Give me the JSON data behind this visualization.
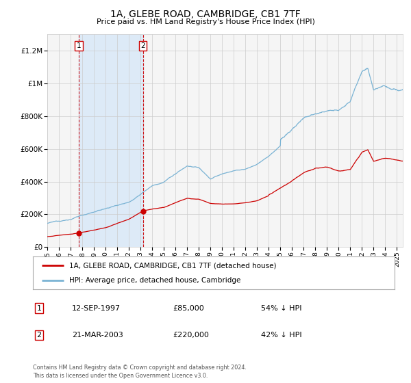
{
  "title": "1A, GLEBE ROAD, CAMBRIDGE, CB1 7TF",
  "subtitle": "Price paid vs. HM Land Registry's House Price Index (HPI)",
  "ylim": [
    0,
    1300000
  ],
  "xlim_start": 1995.0,
  "xlim_end": 2025.5,
  "hpi_color": "#7ab3d4",
  "price_color": "#cc0000",
  "bg_color": "#ffffff",
  "plot_bg_color": "#f5f5f5",
  "grid_color": "#cccccc",
  "shade_color": "#ddeaf7",
  "purchase1_date": 1997.7,
  "purchase1_price": 85000,
  "purchase2_date": 2003.22,
  "purchase2_price": 220000,
  "legend_label_price": "1A, GLEBE ROAD, CAMBRIDGE, CB1 7TF (detached house)",
  "legend_label_hpi": "HPI: Average price, detached house, Cambridge",
  "footnote": "Contains HM Land Registry data © Crown copyright and database right 2024.\nThis data is licensed under the Open Government Licence v3.0.",
  "table_rows": [
    {
      "num": "1",
      "date": "12-SEP-1997",
      "price": "£85,000",
      "pct": "54% ↓ HPI"
    },
    {
      "num": "2",
      "date": "21-MAR-2003",
      "price": "£220,000",
      "pct": "42% ↓ HPI"
    }
  ],
  "ytick_labels": [
    "£0",
    "£200K",
    "£400K",
    "£600K",
    "£800K",
    "£1M",
    "£1.2M"
  ],
  "ytick_values": [
    0,
    200000,
    400000,
    600000,
    800000,
    1000000,
    1200000
  ],
  "xtick_years": [
    1995,
    1996,
    1997,
    1998,
    1999,
    2000,
    2001,
    2002,
    2003,
    2004,
    2005,
    2006,
    2007,
    2008,
    2009,
    2010,
    2011,
    2012,
    2013,
    2014,
    2015,
    2016,
    2017,
    2018,
    2019,
    2020,
    2021,
    2022,
    2023,
    2024,
    2025
  ]
}
